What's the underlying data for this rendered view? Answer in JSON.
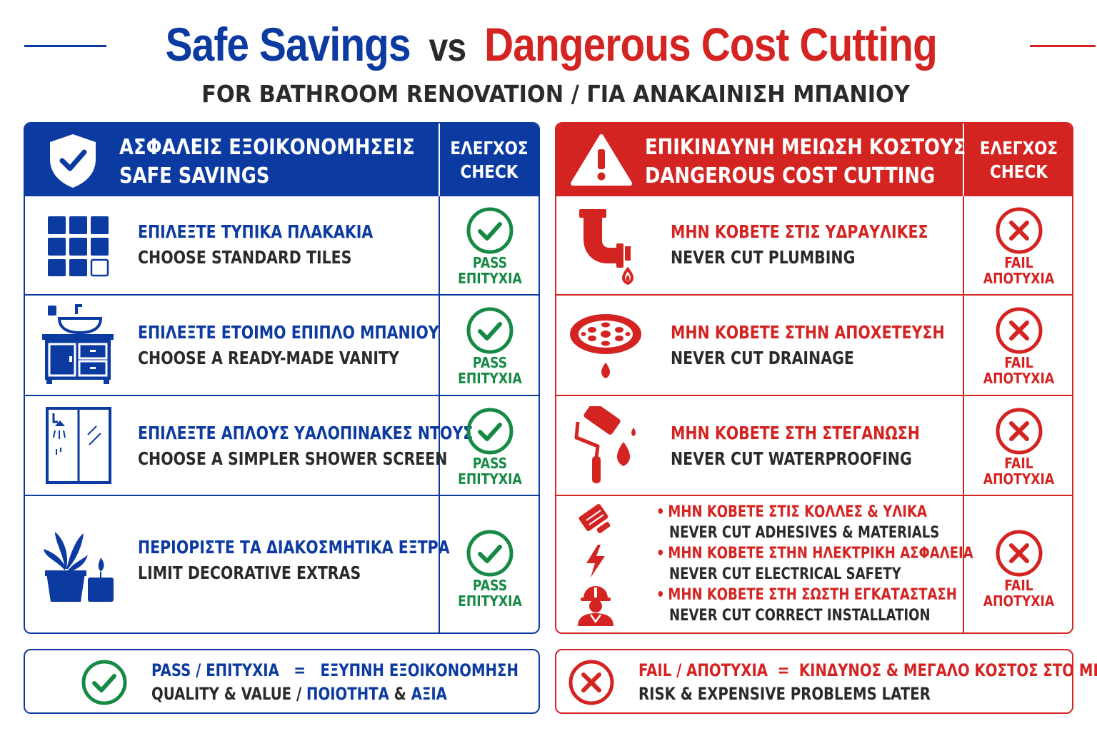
{
  "title": {
    "safe": "Safe Savings",
    "vs": "vs",
    "danger": "Dangerous Cost Cutting",
    "subtitle": "FOR BATHROOM RENOVATION / ΓΙΑ ΑΝΑΚΑΙΝΙΣΗ ΜΠΑΝΙΟΥ"
  },
  "colors": {
    "blue": "#0b3aa0",
    "red": "#d42422",
    "green": "#168a45",
    "dark": "#2a2a2a"
  },
  "safe": {
    "header": {
      "title_gr": "ΑΣΦΑΛΕΙΣ ΕΞΟΙΚΟΝΟΜΗΣΕΙΣ",
      "title_en": "SAFE SAVINGS",
      "check_gr": "ΕΛΕΓΧΟΣ",
      "check_en": "CHECK",
      "icon": "shield-check-icon"
    },
    "rows": [
      {
        "gr": "ΕΠΙΛΕΞΤΕ ΤΥΠΙΚΑ ΠΛΑΚΑΚΙΑ",
        "en": "CHOOSE STANDARD TILES",
        "icon": "tiles-icon",
        "status_en": "PASS",
        "status_gr": "ΕΠΙΤΥΧΙΑ"
      },
      {
        "gr": "ΕΠΙΛΕΞΤΕ ΕΤΟΙΜΟ ΕΠΙΠΛΟ ΜΠΑΝΙΟΥ",
        "en": "CHOOSE A READY-MADE VANITY",
        "icon": "vanity-icon",
        "status_en": "PASS",
        "status_gr": "ΕΠΙΤΥΧΙΑ"
      },
      {
        "gr": "ΕΠΙΛΕΞΤΕ ΑΠΛΟΥΣ ΥΑΛΟΠΙΝΑΚΕΣ ΝΤΟΥΣ",
        "en": "CHOOSE A SIMPLER SHOWER SCREEN",
        "icon": "shower-screen-icon",
        "status_en": "PASS",
        "status_gr": "ΕΠΙΤΥΧΙΑ"
      },
      {
        "gr": "ΠΕΡΙΟΡΙΣΤΕ ΤΑ ΔΙΑΚΟΣΜΗΤΙΚΑ ΕΞΤΡΑ",
        "en": "LIMIT DECORATIVE EXTRAS",
        "icon": "plant-candle-icon",
        "status_en": "PASS",
        "status_gr": "ΕΠΙΤΥΧΙΑ"
      }
    ]
  },
  "danger": {
    "header": {
      "title_gr": "ΕΠΙΚΙΝΔΥΝΗ ΜΕΙΩΣΗ ΚΟΣΤΟΥΣ",
      "title_en": "DANGEROUS COST CUTTING",
      "check_gr": "ΕΛΕΓΧΟΣ",
      "check_en": "CHECK",
      "icon": "warning-triangle-icon"
    },
    "rows": [
      {
        "gr": "ΜΗΝ ΚΟΒΕΤΕ ΣΤΙΣ ΥΔΡΑΥΛΙΚΕΣ",
        "en": "NEVER CUT PLUMBING",
        "icon": "pipe-leak-icon",
        "status_en": "FAIL",
        "status_gr": "ΑΠΟΤΥΧΙΑ"
      },
      {
        "gr": "ΜΗΝ ΚΟΒΕΤΕ ΣΤΗΝ ΑΠΟΧΕΤΕΥΣΗ",
        "en": "NEVER CUT DRAINAGE",
        "icon": "drain-icon",
        "status_en": "FAIL",
        "status_gr": "ΑΠΟΤΥΧΙΑ"
      },
      {
        "gr": "ΜΗΝ ΚΟΒΕΤΕ ΣΤΗ ΣΤΕΓΑΝΩΣΗ",
        "en": "NEVER CUT WATERPROOFING",
        "icon": "paint-roller-icon",
        "status_en": "FAIL",
        "status_gr": "ΑΠΟΤΥΧΙΑ"
      }
    ],
    "bullets": [
      {
        "gr": "ΜΗΝ ΚΟΒΕΤΕ ΣΤΙΣ ΚΟΛΛΕΣ & ΥΛΙΚΑ",
        "en": "NEVER CUT ADHESIVES & MATERIALS",
        "icon": "trowel-icon"
      },
      {
        "gr": "ΜΗΝ ΚΟΒΕΤΕ ΣΤΗΝ ΗΛΕΚΤΡΙΚΗ ΑΣΦΑΛΕΙΑ",
        "en": "NEVER CUT ELECTRICAL SAFETY",
        "icon": "lightning-icon"
      },
      {
        "gr": "ΜΗΝ ΚΟΒΕΤΕ ΣΤΗ ΣΩΣΤΗ ΕΓΚΑΤΑΣΤΑΣΗ",
        "en": "NEVER CUT CORRECT INSTALLATION",
        "icon": "worker-icon"
      }
    ],
    "bullets_status_en": "FAIL",
    "bullets_status_gr": "ΑΠΟΤΥΧΙΑ"
  },
  "legend": {
    "safe": {
      "line1": "PASS / ΕΠΙΤΥΧΙΑ   =   ΕΞΥΠΝΗ ΕΞΟΙΚΟΝΟΜΗΣΗ",
      "l2a": "QUALITY & VALUE / ",
      "l2b": "ΠΟΙΟΤΗΤΑ",
      "l2c": " & ",
      "l2d": "ΑΞΙΑ"
    },
    "danger": {
      "line1": "FAIL / ΑΠΟΤΥΧΙΑ  =  ΚΙΝΔΥΝΟΣ & ΜΕΓΑΛΟ ΚΟΣΤΟΣ ΣΤΟ ΜΕΛΛΟΝ",
      "line2": "RISK & EXPENSIVE PROBLEMS LATER"
    }
  }
}
